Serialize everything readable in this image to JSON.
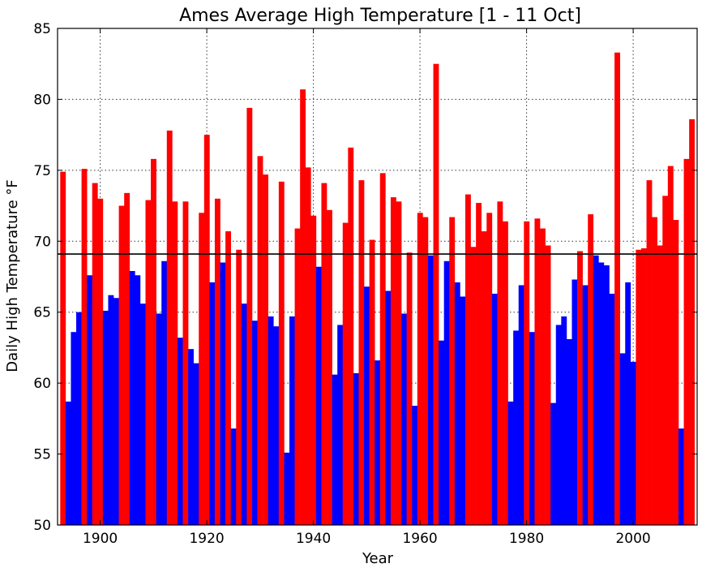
{
  "chart_data": {
    "type": "bar",
    "title": "Ames Average High Temperature [1 - 11 Oct]",
    "xlabel": "Year",
    "ylabel": "Daily High Temperature °F",
    "xlim": [
      1892,
      2012
    ],
    "ylim": [
      50,
      85
    ],
    "xticks": [
      "1900",
      "1920",
      "1940",
      "1960",
      "1980",
      "2000"
    ],
    "yticks": [
      "50",
      "55",
      "60",
      "65",
      "70",
      "75",
      "80",
      "85"
    ],
    "grid": true,
    "average": 69.1,
    "colors": {
      "above": "#ff0000",
      "below": "#0000ff",
      "average_line": "#000000"
    },
    "start_year": 1893,
    "values": [
      74.9,
      58.7,
      63.6,
      65.0,
      75.1,
      67.6,
      74.1,
      73.0,
      65.1,
      66.2,
      66.0,
      72.5,
      73.4,
      67.9,
      67.6,
      65.6,
      72.9,
      75.8,
      64.9,
      68.6,
      77.8,
      72.8,
      63.2,
      72.8,
      62.4,
      61.4,
      72.0,
      77.5,
      67.1,
      73.0,
      68.5,
      70.7,
      56.8,
      69.4,
      65.6,
      79.4,
      64.4,
      76.0,
      74.7,
      64.7,
      64.0,
      74.2,
      55.1,
      64.7,
      70.9,
      80.7,
      75.2,
      71.8,
      68.2,
      74.1,
      72.2,
      60.6,
      64.1,
      71.3,
      76.6,
      60.7,
      74.3,
      66.8,
      70.1,
      61.6,
      74.8,
      66.5,
      73.1,
      72.8,
      64.9,
      69.2,
      58.4,
      72.0,
      71.7,
      69.0,
      82.5,
      63.0,
      68.6,
      71.7,
      67.1,
      66.1,
      73.3,
      69.6,
      72.7,
      70.7,
      72.0,
      66.3,
      72.8,
      71.4,
      58.7,
      63.7,
      66.9,
      71.4,
      63.6,
      71.6,
      70.9,
      69.7,
      58.6,
      64.1,
      64.7,
      63.1,
      67.3,
      69.3,
      66.9,
      71.9,
      69.0,
      68.5,
      68.3,
      66.3,
      83.3,
      62.1,
      67.1,
      61.5,
      69.4,
      69.5,
      74.3,
      71.7,
      69.7,
      73.2,
      75.3,
      71.5,
      56.8,
      75.8,
      78.6
    ]
  }
}
